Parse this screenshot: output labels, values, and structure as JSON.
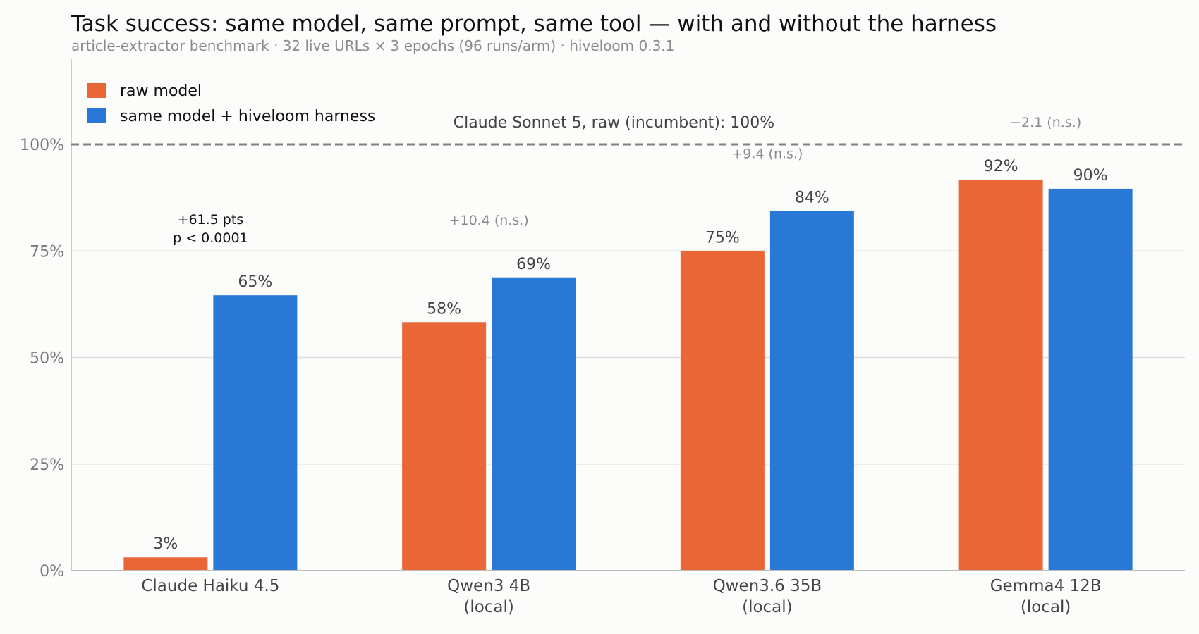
{
  "chart_data": {
    "type": "bar",
    "title": "Task success: same model, same prompt, same tool — with and without the harness",
    "subtitle": "article-extractor benchmark · 32 live URLs × 3 epochs (96 runs/arm) · hiveloom 0.3.1",
    "categories": [
      [
        "Claude Haiku 4.5"
      ],
      [
        "Qwen3 4B",
        "(local)"
      ],
      [
        "Qwen3.6 35B",
        "(local)"
      ],
      [
        "Gemma4 12B",
        "(local)"
      ]
    ],
    "series": [
      {
        "name": "raw model",
        "color": "#e96736",
        "values": [
          3.1,
          58.3,
          75.0,
          91.7
        ],
        "labels": [
          "3%",
          "58%",
          "75%",
          "92%"
        ]
      },
      {
        "name": "same model + hiveloom harness",
        "color": "#2a78d6",
        "values": [
          64.6,
          68.8,
          84.4,
          89.6
        ],
        "labels": [
          "65%",
          "69%",
          "84%",
          "90%"
        ]
      }
    ],
    "deltas": [
      {
        "lines": [
          "+61.5 pts",
          "p < 0.0001"
        ],
        "significant": true
      },
      {
        "lines": [
          "+10.4 (n.s.)"
        ],
        "significant": false
      },
      {
        "lines": [
          "+9.4 (n.s.)"
        ],
        "significant": false
      },
      {
        "lines": [
          "−2.1 (n.s.)"
        ],
        "significant": false
      }
    ],
    "reference_line": {
      "value": 100,
      "label": "Claude Sonnet 5, raw (incumbent): 100%",
      "style": "dashed",
      "color": "#808080"
    },
    "yticks": [
      0,
      25,
      50,
      75,
      100
    ],
    "ytick_labels": [
      "0%",
      "25%",
      "50%",
      "75%",
      "100%"
    ],
    "ylim": [
      0,
      120
    ],
    "grid": true,
    "legend_position": "top-left",
    "xlabel": "",
    "ylabel": ""
  }
}
